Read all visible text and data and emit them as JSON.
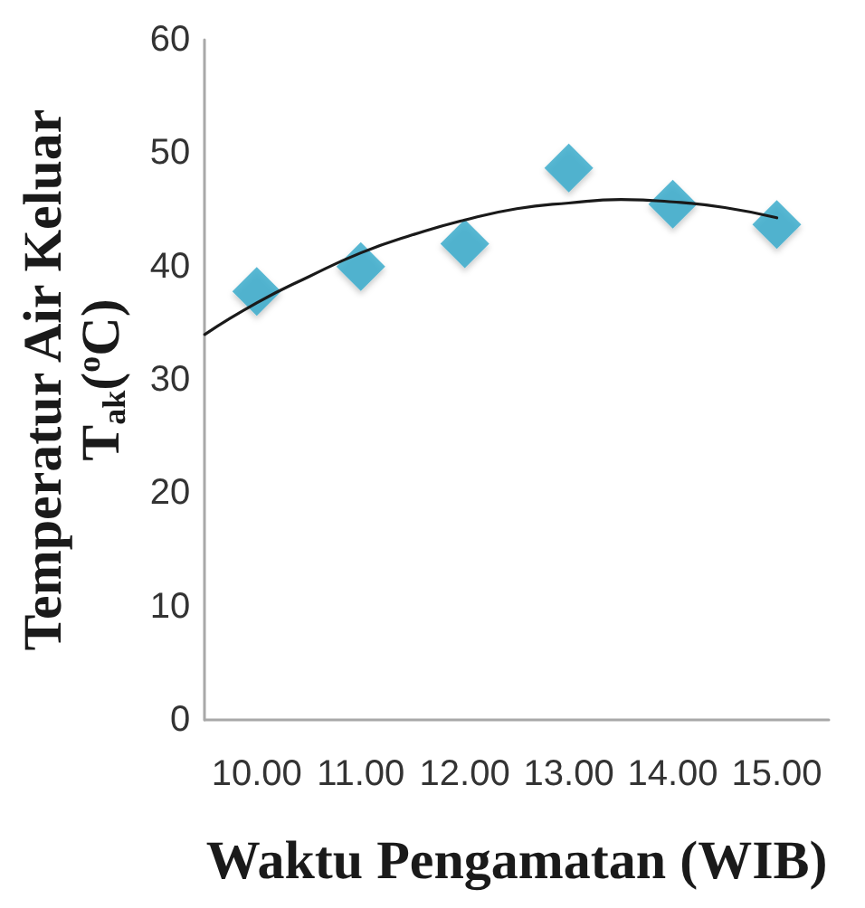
{
  "chart_data": {
    "type": "scatter",
    "xlabel": "Waktu Pengamatan (WIB)",
    "ylabel": "Temperatur Air Keluar\nT$_{ak}$($^{o}$C)",
    "x": [
      10,
      11,
      12,
      13,
      14,
      15
    ],
    "xlim": [
      9.5,
      15.5
    ],
    "xticks": [
      {
        "value": 10,
        "label": "10.00"
      },
      {
        "value": 11,
        "label": "11.00"
      },
      {
        "value": 12,
        "label": "12.00"
      },
      {
        "value": 13,
        "label": "13.00"
      },
      {
        "value": 14,
        "label": "14.00"
      },
      {
        "value": 15,
        "label": "15.00"
      }
    ],
    "ylim": [
      0,
      60
    ],
    "yticks": [
      0,
      10,
      20,
      30,
      40,
      50,
      60
    ],
    "marker": "diamond",
    "grid": false,
    "series": [
      {
        "color": "#31a8c9",
        "values": [
          37.8,
          40,
          42,
          48.7,
          45.5,
          43.7
        ]
      },
      {
        "type": "line",
        "color": "#1a1a1a",
        "marker": "none",
        "x": [
          9.5,
          10,
          10.5,
          11,
          11.5,
          12,
          12.5,
          13,
          13.5,
          14,
          14.5,
          15
        ],
        "values": [
          34.0,
          36.8,
          39.1,
          41.2,
          42.8,
          44.1,
          45.1,
          45.6,
          45.9,
          45.7,
          45.2,
          44.3
        ]
      }
    ]
  }
}
